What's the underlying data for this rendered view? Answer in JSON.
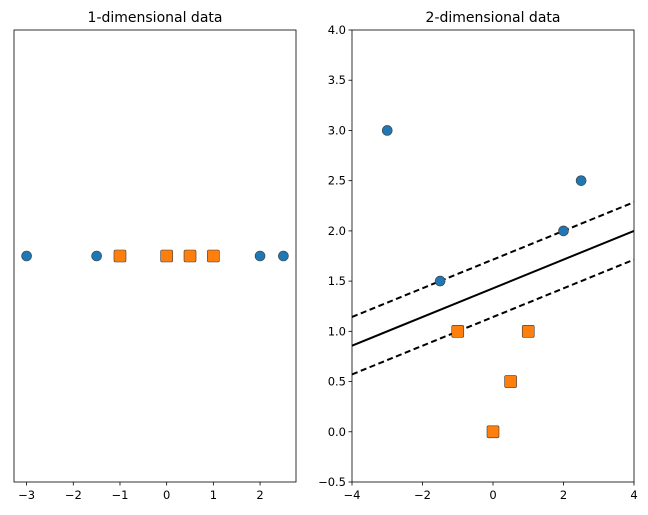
{
  "chart_data": [
    {
      "type": "scatter",
      "title": "1-dimensional data",
      "xlabel": "",
      "ylabel": "",
      "xlim": [
        -3.27,
        2.77
      ],
      "ylim": [
        -1,
        1
      ],
      "xticks": [
        -3,
        -2,
        -1,
        0,
        1,
        2
      ],
      "xtick_labels": [
        "−3",
        "−2",
        "−1",
        "0",
        "1",
        "2"
      ],
      "yticks_visible": false,
      "grid": false,
      "series": [
        {
          "marker": "circle",
          "color": "#1f77b4",
          "x": [
            -3,
            -1.5,
            2,
            2.5
          ],
          "y": [
            0,
            0,
            0,
            0
          ]
        },
        {
          "marker": "square",
          "color": "#ff7f0e",
          "x": [
            -1,
            0,
            0.5,
            1
          ],
          "y": [
            0,
            0,
            0,
            0
          ]
        }
      ]
    },
    {
      "type": "scatter",
      "title": "2-dimensional data",
      "xlabel": "",
      "ylabel": "",
      "xlim": [
        -4,
        4
      ],
      "ylim": [
        -0.5,
        4.0
      ],
      "xticks": [
        -4,
        -2,
        0,
        2,
        4
      ],
      "xtick_labels": [
        "−4",
        "−2",
        "0",
        "2",
        "4"
      ],
      "yticks": [
        -0.5,
        0.0,
        0.5,
        1.0,
        1.5,
        2.0,
        2.5,
        3.0,
        3.5,
        4.0
      ],
      "ytick_labels": [
        "−0.5",
        "0.0",
        "0.5",
        "1.0",
        "1.5",
        "2.0",
        "2.5",
        "3.0",
        "3.5",
        "4.0"
      ],
      "grid": false,
      "series": [
        {
          "marker": "circle",
          "color": "#1f77b4",
          "x": [
            -3,
            -1.5,
            2,
            2.5
          ],
          "y": [
            3.0,
            1.5,
            2.0,
            2.5
          ]
        },
        {
          "marker": "square",
          "color": "#ff7f0e",
          "x": [
            -1,
            0,
            0.5,
            1
          ],
          "y": [
            1.0,
            0.0,
            0.5,
            1.0
          ]
        }
      ],
      "lines": [
        {
          "style": "solid",
          "x": [
            -4,
            4
          ],
          "y": [
            0.857,
            2.0
          ]
        },
        {
          "style": "dashed",
          "x": [
            -4,
            4
          ],
          "y": [
            1.143,
            2.286
          ]
        },
        {
          "style": "dashed",
          "x": [
            -4,
            4
          ],
          "y": [
            0.571,
            1.714
          ]
        }
      ]
    }
  ]
}
